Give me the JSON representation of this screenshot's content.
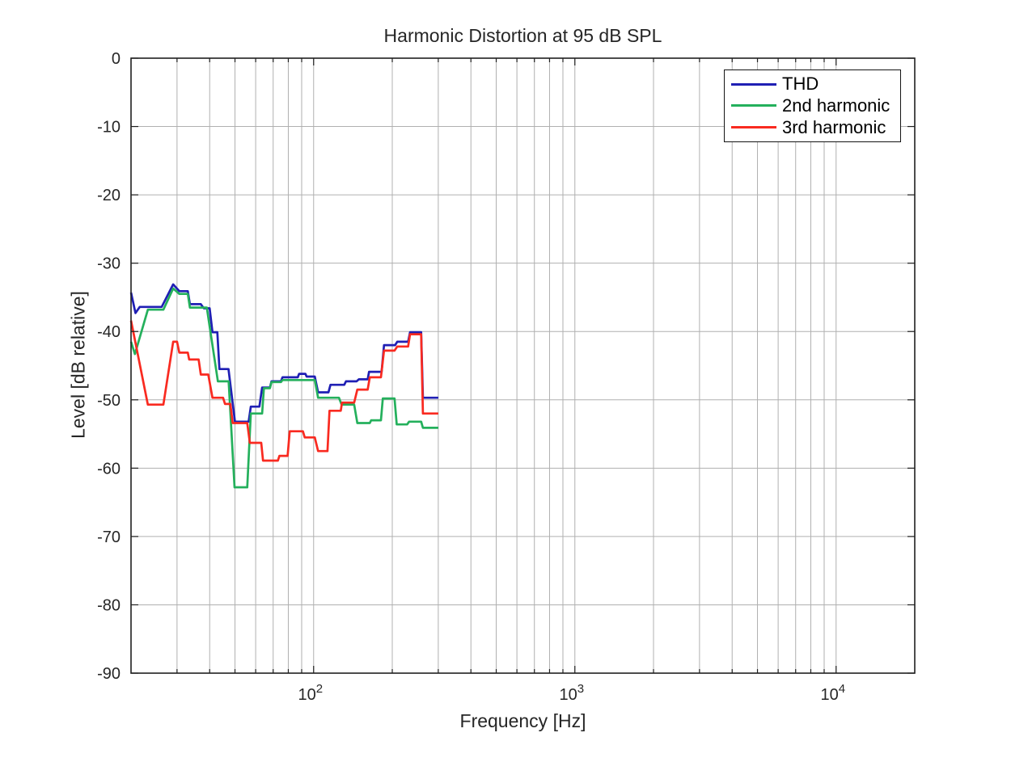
{
  "chart_data": {
    "type": "line",
    "title": "Harmonic Distortion at 95 dB SPL",
    "xlabel": "Frequency [Hz]",
    "ylabel": "Level [dB relative]",
    "x_scale": "log",
    "xlim": [
      20,
      20000
    ],
    "ylim": [
      -90,
      0
    ],
    "grid": true,
    "legend_position": "top-right",
    "colors": {
      "axis": "#1f1f1f",
      "grid": "#b0b0b0",
      "text": "#262626"
    },
    "x_gridlines": [
      30,
      40,
      50,
      60,
      70,
      80,
      90,
      100,
      200,
      300,
      400,
      500,
      600,
      700,
      800,
      900,
      1000,
      2000,
      3000,
      4000,
      5000,
      6000,
      7000,
      8000,
      9000,
      10000
    ],
    "x_major_ticks": [
      {
        "value": 100,
        "label_base": "10",
        "label_exp": "2"
      },
      {
        "value": 1000,
        "label_base": "10",
        "label_exp": "3"
      },
      {
        "value": 10000,
        "label_base": "10",
        "label_exp": "4"
      }
    ],
    "y_gridlines": [
      -10,
      -20,
      -30,
      -40,
      -50,
      -60,
      -70,
      -80
    ],
    "y_ticks": [
      {
        "value": 0,
        "label": "0"
      },
      {
        "value": -10,
        "label": "-10"
      },
      {
        "value": -20,
        "label": "-20"
      },
      {
        "value": -30,
        "label": "-30"
      },
      {
        "value": -40,
        "label": "-40"
      },
      {
        "value": -50,
        "label": "-50"
      },
      {
        "value": -60,
        "label": "-60"
      },
      {
        "value": -70,
        "label": "-70"
      },
      {
        "value": -80,
        "label": "-80"
      },
      {
        "value": -90,
        "label": "-90"
      }
    ],
    "series": [
      {
        "name": "THD",
        "color": "#1f1fb4",
        "points": [
          [
            20,
            -34.3
          ],
          [
            20.8,
            -37.3
          ],
          [
            21.6,
            -36.4
          ],
          [
            26.2,
            -36.4
          ],
          [
            29,
            -33.1
          ],
          [
            30.6,
            -34.1
          ],
          [
            33,
            -34.1
          ],
          [
            33.6,
            -36.0
          ],
          [
            37,
            -36.0
          ],
          [
            38,
            -36.6
          ],
          [
            40,
            -36.6
          ],
          [
            41,
            -40.1
          ],
          [
            42.8,
            -40.1
          ],
          [
            43.6,
            -45.5
          ],
          [
            47.2,
            -45.5
          ],
          [
            50,
            -53.2
          ],
          [
            56.4,
            -53.2
          ],
          [
            57.5,
            -51.0
          ],
          [
            62,
            -51.0
          ],
          [
            63.5,
            -48.2
          ],
          [
            68,
            -48.2
          ],
          [
            69,
            -47.3
          ],
          [
            75,
            -47.3
          ],
          [
            76,
            -46.7
          ],
          [
            87,
            -46.7
          ],
          [
            88,
            -46.2
          ],
          [
            93,
            -46.2
          ],
          [
            94,
            -46.6
          ],
          [
            101,
            -46.6
          ],
          [
            104,
            -48.9
          ],
          [
            114,
            -48.9
          ],
          [
            116,
            -47.8
          ],
          [
            131,
            -47.8
          ],
          [
            133,
            -47.3
          ],
          [
            146,
            -47.3
          ],
          [
            149,
            -47.0
          ],
          [
            161,
            -47.0
          ],
          [
            163,
            -45.9
          ],
          [
            182,
            -45.9
          ],
          [
            186,
            -42.0
          ],
          [
            205,
            -42.0
          ],
          [
            209,
            -41.5
          ],
          [
            230,
            -41.5
          ],
          [
            234,
            -40.1
          ],
          [
            258,
            -40.1
          ],
          [
            262,
            -49.7
          ],
          [
            300,
            -49.7
          ]
        ]
      },
      {
        "name": "2nd harmonic",
        "color": "#24b05c",
        "points": [
          [
            20,
            -41.5
          ],
          [
            20.7,
            -43.3
          ],
          [
            23.2,
            -36.8
          ],
          [
            26.6,
            -36.8
          ],
          [
            29,
            -33.7
          ],
          [
            30.6,
            -34.5
          ],
          [
            33,
            -34.5
          ],
          [
            33.6,
            -36.5
          ],
          [
            39,
            -36.5
          ],
          [
            43,
            -47.3
          ],
          [
            47.3,
            -47.3
          ],
          [
            49.8,
            -62.8
          ],
          [
            55.7,
            -62.8
          ],
          [
            57.5,
            -52.0
          ],
          [
            63.5,
            -52.0
          ],
          [
            64.5,
            -48.3
          ],
          [
            68,
            -48.3
          ],
          [
            69,
            -47.4
          ],
          [
            75,
            -47.4
          ],
          [
            76,
            -47.1
          ],
          [
            101,
            -47.1
          ],
          [
            104,
            -49.7
          ],
          [
            125,
            -49.7
          ],
          [
            128,
            -50.7
          ],
          [
            143,
            -50.7
          ],
          [
            147,
            -53.4
          ],
          [
            164,
            -53.4
          ],
          [
            166,
            -53.0
          ],
          [
            181,
            -53.0
          ],
          [
            184,
            -49.8
          ],
          [
            204,
            -49.8
          ],
          [
            208,
            -53.6
          ],
          [
            228,
            -53.6
          ],
          [
            232,
            -53.2
          ],
          [
            258,
            -53.2
          ],
          [
            262,
            -54.1
          ],
          [
            300,
            -54.1
          ]
        ]
      },
      {
        "name": "3rd harmonic",
        "color": "#f92a20",
        "points": [
          [
            20,
            -38.4
          ],
          [
            23.2,
            -50.7
          ],
          [
            26.6,
            -50.7
          ],
          [
            29,
            -41.5
          ],
          [
            30,
            -41.5
          ],
          [
            30.6,
            -43.1
          ],
          [
            33,
            -43.1
          ],
          [
            33.4,
            -44.1
          ],
          [
            36.3,
            -44.1
          ],
          [
            37,
            -46.3
          ],
          [
            39.5,
            -46.3
          ],
          [
            41,
            -49.7
          ],
          [
            45,
            -49.7
          ],
          [
            45.8,
            -50.6
          ],
          [
            48,
            -50.6
          ],
          [
            49,
            -53.4
          ],
          [
            55.7,
            -53.4
          ],
          [
            57,
            -56.3
          ],
          [
            63,
            -56.3
          ],
          [
            64,
            -58.9
          ],
          [
            73,
            -58.9
          ],
          [
            74,
            -58.2
          ],
          [
            79.5,
            -58.2
          ],
          [
            81,
            -54.6
          ],
          [
            91,
            -54.6
          ],
          [
            92.5,
            -55.5
          ],
          [
            101,
            -55.5
          ],
          [
            104,
            -57.5
          ],
          [
            113,
            -57.5
          ],
          [
            115,
            -51.6
          ],
          [
            127,
            -51.6
          ],
          [
            128.5,
            -50.4
          ],
          [
            143,
            -50.4
          ],
          [
            147,
            -48.5
          ],
          [
            161,
            -48.5
          ],
          [
            164,
            -46.7
          ],
          [
            181,
            -46.7
          ],
          [
            186,
            -42.8
          ],
          [
            204,
            -42.8
          ],
          [
            209,
            -42.2
          ],
          [
            230,
            -42.2
          ],
          [
            234,
            -40.4
          ],
          [
            258,
            -40.4
          ],
          [
            262,
            -52.0
          ],
          [
            300,
            -52.0
          ]
        ]
      }
    ]
  }
}
